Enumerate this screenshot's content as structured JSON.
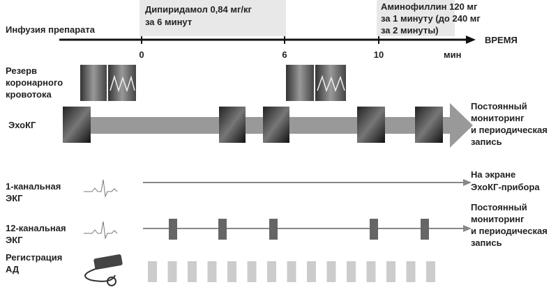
{
  "timeline": {
    "label": "Инфузия препарата",
    "drug1": [
      "Дипиридамол 0,84 мг/кг",
      "за 6 минут"
    ],
    "drug2": [
      "Аминофиллин 120 мг",
      "за 1 минуту (до 240 мг",
      "за 2 минуты)"
    ],
    "ticks": [
      "0",
      "6",
      "10"
    ],
    "unit": "мин",
    "axis_title": "ВРЕМЯ"
  },
  "rows": [
    {
      "label": [
        "Резерв",
        "коронарного",
        "кровотока"
      ]
    },
    {
      "label": [
        "ЭхоКГ"
      ],
      "note": [
        "Постоянный",
        "мониторинг",
        "и периодическая",
        "запись"
      ]
    },
    {
      "label": [
        "1-канальная",
        "ЭКГ"
      ],
      "note": [
        "На экране",
        "ЭхоКГ-прибора"
      ]
    },
    {
      "label": [
        "12-канальная",
        "ЭКГ"
      ],
      "note": [
        "Постоянный",
        "мониторинг",
        "и периодическая",
        "запись"
      ]
    },
    {
      "label": [
        "Регистрация",
        "АД"
      ]
    }
  ]
}
